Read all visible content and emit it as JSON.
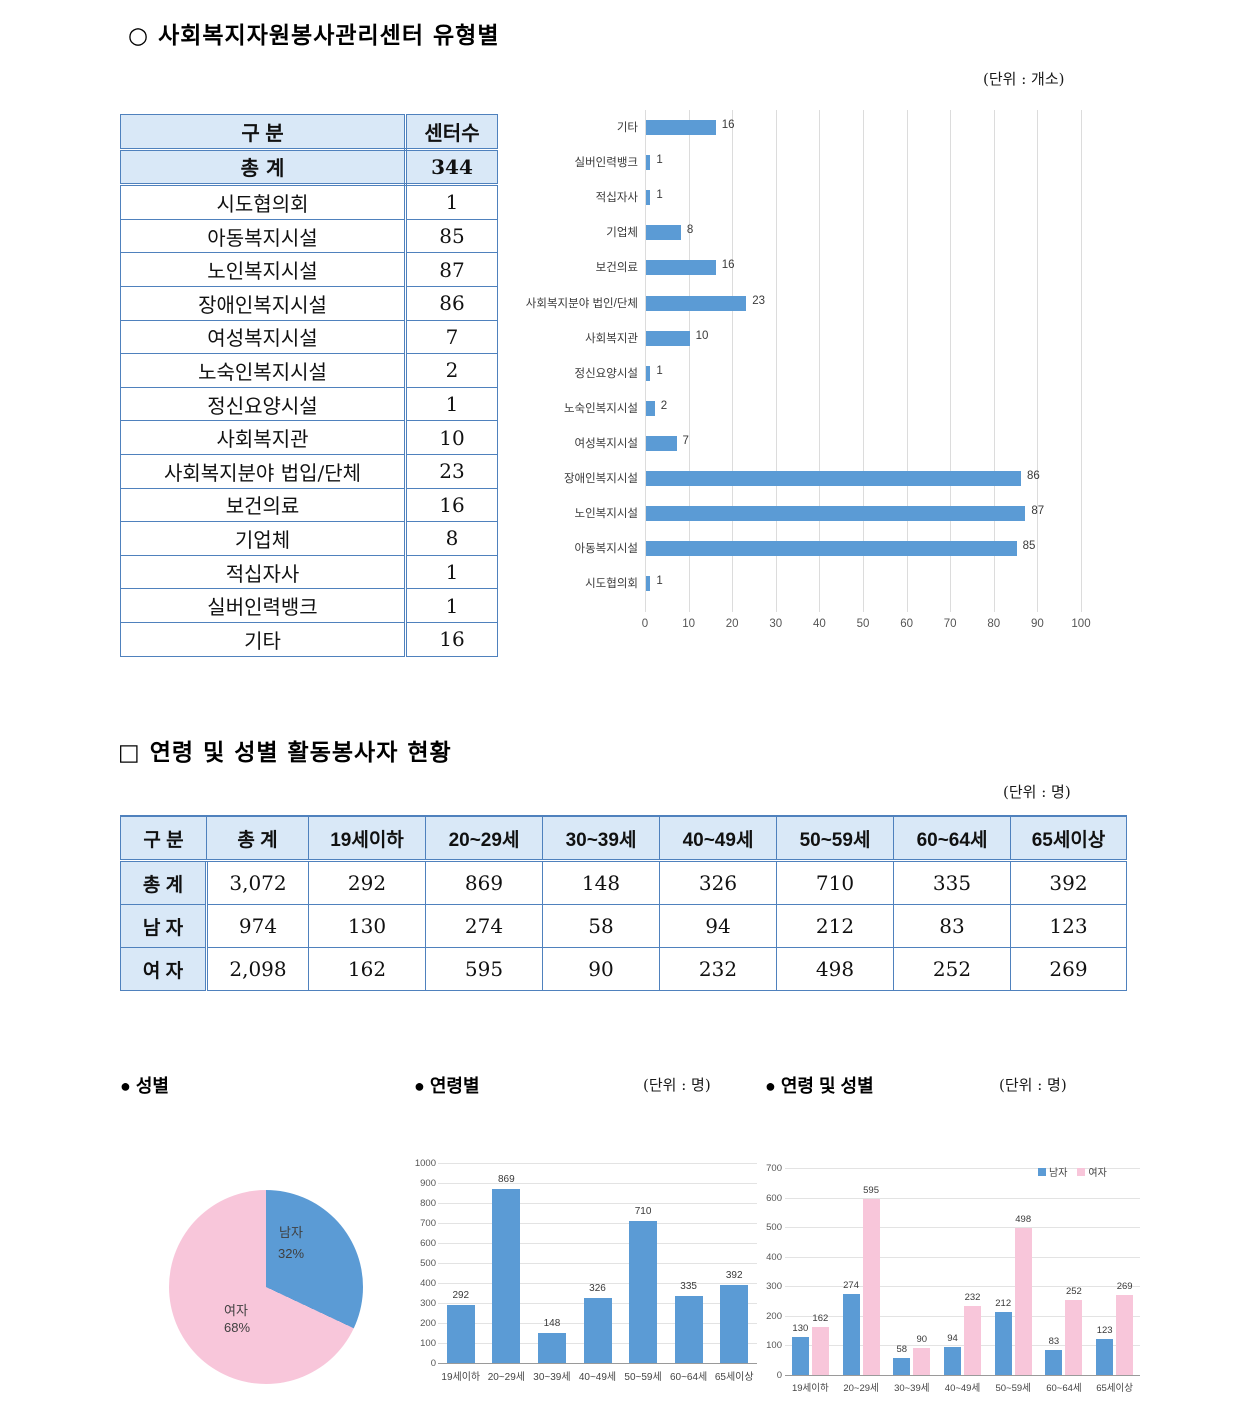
{
  "page": {
    "section1_title": "○ 사회복지자원봉사관리센터 유형별",
    "section1_unit": "(단위 : 개소)",
    "section2_title": "□ 연령 및 성별 활동봉사자 현황",
    "section2_unit": "(단위 : 명)"
  },
  "colors": {
    "bar_blue": "#5b9bd5",
    "bar_pink": "#f8c6da",
    "table_fill_blue": "#d9e8f7",
    "table_border_blue": "#4f81bd"
  },
  "center_table": {
    "headers": [
      "구    분",
      "센터수"
    ],
    "rows": [
      [
        "총    계",
        "344"
      ],
      [
        "시도협의회",
        "1"
      ],
      [
        "아동복지시설",
        "85"
      ],
      [
        "노인복지시설",
        "87"
      ],
      [
        "장애인복지시설",
        "86"
      ],
      [
        "여성복지시설",
        "7"
      ],
      [
        "노숙인복지시설",
        "2"
      ],
      [
        "정신요양시설",
        "1"
      ],
      [
        "사회복지관",
        "10"
      ],
      [
        "사회복지분야 법입/단체",
        "23"
      ],
      [
        "보건의료",
        "16"
      ],
      [
        "기업체",
        "8"
      ],
      [
        "적십자사",
        "1"
      ],
      [
        "실버인력뱅크",
        "1"
      ],
      [
        "기타",
        "16"
      ]
    ]
  },
  "volunteer_table": {
    "headers": [
      "구 분",
      "총 계",
      "19세이하",
      "20~29세",
      "30~39세",
      "40~49세",
      "50~59세",
      "60~64세",
      "65세이상"
    ],
    "rows": [
      [
        "총 계",
        "3,072",
        "292",
        "869",
        "148",
        "326",
        "710",
        "335",
        "392"
      ],
      [
        "남 자",
        "974",
        "130",
        "274",
        "58",
        "94",
        "212",
        "83",
        "123"
      ],
      [
        "여 자",
        "2,098",
        "162",
        "595",
        "90",
        "232",
        "498",
        "252",
        "269"
      ]
    ]
  },
  "bottom": {
    "pie_label": "● 성별",
    "age_label": "● 연령별",
    "age_unit": "(단위 : 명)",
    "agegender_label": "● 연령 및 성별",
    "agegender_unit": "(단위 : 명)"
  },
  "chart_data": [
    {
      "type": "bar",
      "orientation": "horizontal",
      "title": "사회복지자원봉사관리센터 유형별",
      "categories": [
        "기타",
        "실버인력뱅크",
        "적십자사",
        "기업체",
        "보건의료",
        "사회복지분야 법인/단체",
        "사회복지관",
        "정신요양시설",
        "노숙인복지시설",
        "여성복지시설",
        "장애인복지시설",
        "노인복지시설",
        "아동복지시설",
        "시도협의회"
      ],
      "values": [
        16,
        1,
        1,
        8,
        16,
        23,
        10,
        1,
        2,
        7,
        86,
        87,
        85,
        1
      ],
      "xlim": [
        0,
        100
      ],
      "xtick_step": 10,
      "bar_color": "#5b9bd5",
      "value_labels": true,
      "grid": true,
      "legend": "none"
    },
    {
      "type": "pie",
      "title": "성별",
      "slices": [
        {
          "label": "남자",
          "pct": 32,
          "color": "#5b9bd5"
        },
        {
          "label": "여자",
          "pct": 68,
          "color": "#f8c6da"
        }
      ],
      "start_angle": "top",
      "direction": "clockwise"
    },
    {
      "type": "bar",
      "orientation": "vertical",
      "title": "연령별",
      "unit": "(단위 : 명)",
      "categories": [
        "19세이하",
        "20~29세",
        "30~39세",
        "40~49세",
        "50~59세",
        "60~64세",
        "65세이상"
      ],
      "values": [
        292,
        869,
        148,
        326,
        710,
        335,
        392
      ],
      "ylim": [
        0,
        1000
      ],
      "ytick_step": 100,
      "bar_color": "#5b9bd5",
      "value_labels": true,
      "grid": true,
      "legend": "none"
    },
    {
      "type": "bar",
      "orientation": "vertical",
      "grouped": true,
      "title": "연령 및 성별",
      "unit": "(단위 : 명)",
      "categories": [
        "19세이하",
        "20~29세",
        "30~39세",
        "40~49세",
        "50~59세",
        "60~64세",
        "65세이상"
      ],
      "series": [
        {
          "name": "남자",
          "color": "#5b9bd5",
          "values": [
            130,
            274,
            58,
            94,
            212,
            83,
            123
          ]
        },
        {
          "name": "여자",
          "color": "#f8c6da",
          "values": [
            162,
            595,
            90,
            232,
            498,
            252,
            269
          ]
        }
      ],
      "ylim": [
        0,
        700
      ],
      "ytick_step": 100,
      "value_labels": true,
      "grid": true,
      "legend_position": "top-right"
    }
  ]
}
